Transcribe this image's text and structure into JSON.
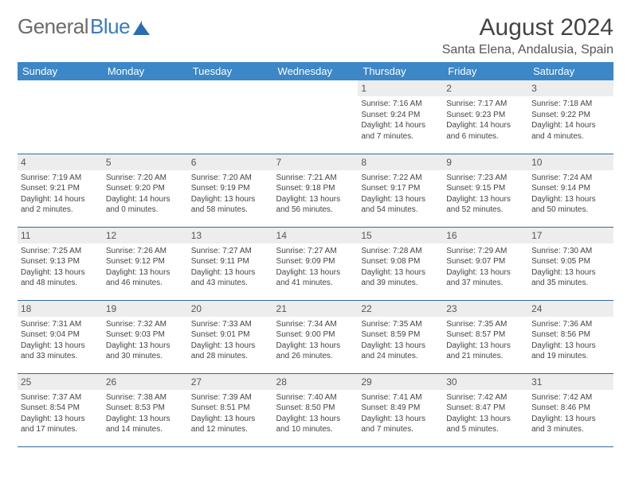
{
  "brand": {
    "part1": "General",
    "part2": "Blue"
  },
  "title": "August 2024",
  "location": "Santa Elena, Andalusia, Spain",
  "colors": {
    "header_bg": "#3b87c8",
    "header_text": "#ffffff",
    "daynum_bg": "#ededed",
    "cell_border": "#2f6aa3",
    "body_text": "#444444",
    "page_bg": "#ffffff",
    "brand_gray": "#6b6b6b",
    "brand_blue": "#3b7bbf"
  },
  "typography": {
    "title_fontsize": 30,
    "location_fontsize": 16,
    "weekday_fontsize": 13,
    "daynum_fontsize": 12,
    "cell_fontsize": 10
  },
  "weekdays": [
    "Sunday",
    "Monday",
    "Tuesday",
    "Wednesday",
    "Thursday",
    "Friday",
    "Saturday"
  ],
  "weeks": [
    [
      {
        "blank": true
      },
      {
        "blank": true
      },
      {
        "blank": true
      },
      {
        "blank": true
      },
      {
        "day": "1",
        "sunrise": "Sunrise: 7:16 AM",
        "sunset": "Sunset: 9:24 PM",
        "daylight": "Daylight: 14 hours and 7 minutes."
      },
      {
        "day": "2",
        "sunrise": "Sunrise: 7:17 AM",
        "sunset": "Sunset: 9:23 PM",
        "daylight": "Daylight: 14 hours and 6 minutes."
      },
      {
        "day": "3",
        "sunrise": "Sunrise: 7:18 AM",
        "sunset": "Sunset: 9:22 PM",
        "daylight": "Daylight: 14 hours and 4 minutes."
      }
    ],
    [
      {
        "day": "4",
        "sunrise": "Sunrise: 7:19 AM",
        "sunset": "Sunset: 9:21 PM",
        "daylight": "Daylight: 14 hours and 2 minutes."
      },
      {
        "day": "5",
        "sunrise": "Sunrise: 7:20 AM",
        "sunset": "Sunset: 9:20 PM",
        "daylight": "Daylight: 14 hours and 0 minutes."
      },
      {
        "day": "6",
        "sunrise": "Sunrise: 7:20 AM",
        "sunset": "Sunset: 9:19 PM",
        "daylight": "Daylight: 13 hours and 58 minutes."
      },
      {
        "day": "7",
        "sunrise": "Sunrise: 7:21 AM",
        "sunset": "Sunset: 9:18 PM",
        "daylight": "Daylight: 13 hours and 56 minutes."
      },
      {
        "day": "8",
        "sunrise": "Sunrise: 7:22 AM",
        "sunset": "Sunset: 9:17 PM",
        "daylight": "Daylight: 13 hours and 54 minutes."
      },
      {
        "day": "9",
        "sunrise": "Sunrise: 7:23 AM",
        "sunset": "Sunset: 9:15 PM",
        "daylight": "Daylight: 13 hours and 52 minutes."
      },
      {
        "day": "10",
        "sunrise": "Sunrise: 7:24 AM",
        "sunset": "Sunset: 9:14 PM",
        "daylight": "Daylight: 13 hours and 50 minutes."
      }
    ],
    [
      {
        "day": "11",
        "sunrise": "Sunrise: 7:25 AM",
        "sunset": "Sunset: 9:13 PM",
        "daylight": "Daylight: 13 hours and 48 minutes."
      },
      {
        "day": "12",
        "sunrise": "Sunrise: 7:26 AM",
        "sunset": "Sunset: 9:12 PM",
        "daylight": "Daylight: 13 hours and 46 minutes."
      },
      {
        "day": "13",
        "sunrise": "Sunrise: 7:27 AM",
        "sunset": "Sunset: 9:11 PM",
        "daylight": "Daylight: 13 hours and 43 minutes."
      },
      {
        "day": "14",
        "sunrise": "Sunrise: 7:27 AM",
        "sunset": "Sunset: 9:09 PM",
        "daylight": "Daylight: 13 hours and 41 minutes."
      },
      {
        "day": "15",
        "sunrise": "Sunrise: 7:28 AM",
        "sunset": "Sunset: 9:08 PM",
        "daylight": "Daylight: 13 hours and 39 minutes."
      },
      {
        "day": "16",
        "sunrise": "Sunrise: 7:29 AM",
        "sunset": "Sunset: 9:07 PM",
        "daylight": "Daylight: 13 hours and 37 minutes."
      },
      {
        "day": "17",
        "sunrise": "Sunrise: 7:30 AM",
        "sunset": "Sunset: 9:05 PM",
        "daylight": "Daylight: 13 hours and 35 minutes."
      }
    ],
    [
      {
        "day": "18",
        "sunrise": "Sunrise: 7:31 AM",
        "sunset": "Sunset: 9:04 PM",
        "daylight": "Daylight: 13 hours and 33 minutes."
      },
      {
        "day": "19",
        "sunrise": "Sunrise: 7:32 AM",
        "sunset": "Sunset: 9:03 PM",
        "daylight": "Daylight: 13 hours and 30 minutes."
      },
      {
        "day": "20",
        "sunrise": "Sunrise: 7:33 AM",
        "sunset": "Sunset: 9:01 PM",
        "daylight": "Daylight: 13 hours and 28 minutes."
      },
      {
        "day": "21",
        "sunrise": "Sunrise: 7:34 AM",
        "sunset": "Sunset: 9:00 PM",
        "daylight": "Daylight: 13 hours and 26 minutes."
      },
      {
        "day": "22",
        "sunrise": "Sunrise: 7:35 AM",
        "sunset": "Sunset: 8:59 PM",
        "daylight": "Daylight: 13 hours and 24 minutes."
      },
      {
        "day": "23",
        "sunrise": "Sunrise: 7:35 AM",
        "sunset": "Sunset: 8:57 PM",
        "daylight": "Daylight: 13 hours and 21 minutes."
      },
      {
        "day": "24",
        "sunrise": "Sunrise: 7:36 AM",
        "sunset": "Sunset: 8:56 PM",
        "daylight": "Daylight: 13 hours and 19 minutes."
      }
    ],
    [
      {
        "day": "25",
        "sunrise": "Sunrise: 7:37 AM",
        "sunset": "Sunset: 8:54 PM",
        "daylight": "Daylight: 13 hours and 17 minutes."
      },
      {
        "day": "26",
        "sunrise": "Sunrise: 7:38 AM",
        "sunset": "Sunset: 8:53 PM",
        "daylight": "Daylight: 13 hours and 14 minutes."
      },
      {
        "day": "27",
        "sunrise": "Sunrise: 7:39 AM",
        "sunset": "Sunset: 8:51 PM",
        "daylight": "Daylight: 13 hours and 12 minutes."
      },
      {
        "day": "28",
        "sunrise": "Sunrise: 7:40 AM",
        "sunset": "Sunset: 8:50 PM",
        "daylight": "Daylight: 13 hours and 10 minutes."
      },
      {
        "day": "29",
        "sunrise": "Sunrise: 7:41 AM",
        "sunset": "Sunset: 8:49 PM",
        "daylight": "Daylight: 13 hours and 7 minutes."
      },
      {
        "day": "30",
        "sunrise": "Sunrise: 7:42 AM",
        "sunset": "Sunset: 8:47 PM",
        "daylight": "Daylight: 13 hours and 5 minutes."
      },
      {
        "day": "31",
        "sunrise": "Sunrise: 7:42 AM",
        "sunset": "Sunset: 8:46 PM",
        "daylight": "Daylight: 13 hours and 3 minutes."
      }
    ]
  ]
}
